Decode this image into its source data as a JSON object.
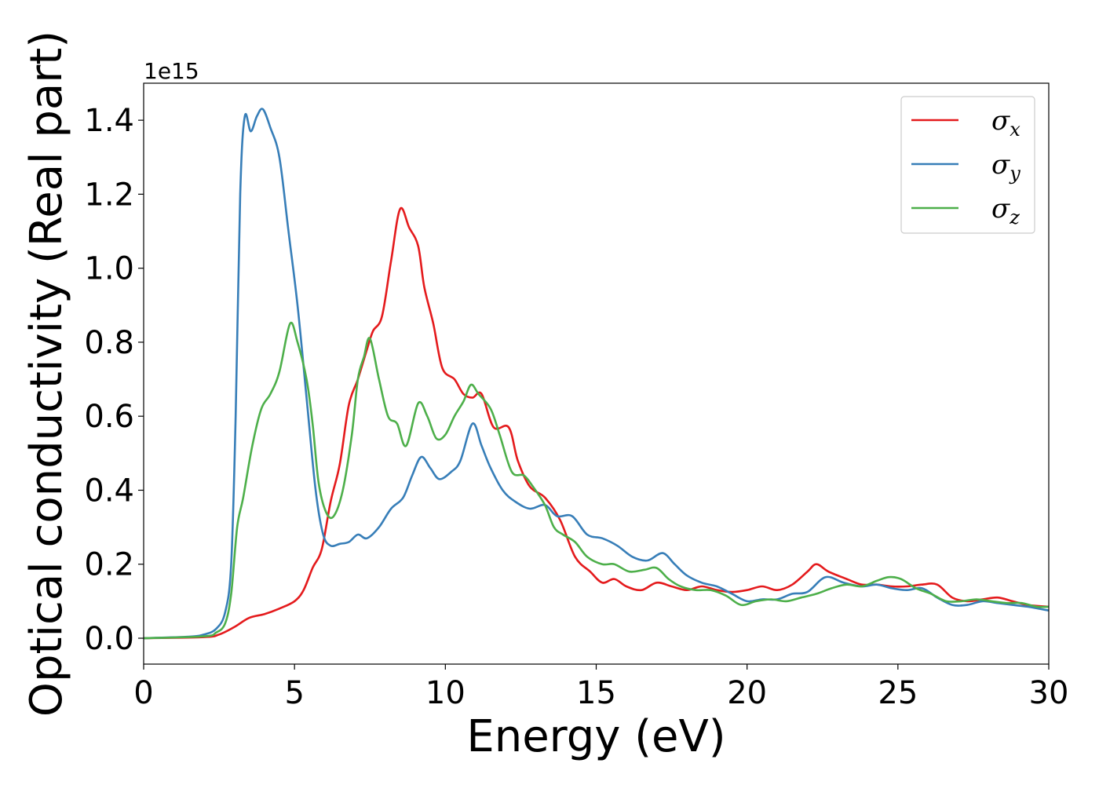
{
  "chart_data": {
    "type": "line",
    "title": "",
    "xlabel": "Energy (eV)",
    "ylabel": "Optical conductivity (Real part)",
    "y_offset_label": "1e15",
    "xlim": [
      0,
      30
    ],
    "ylim": [
      -0.07,
      1.5
    ],
    "x_ticks": [
      0,
      5,
      10,
      15,
      20,
      25,
      30
    ],
    "x_tick_labels": [
      "0",
      "5",
      "10",
      "15",
      "20",
      "25",
      "30"
    ],
    "y_ticks": [
      0.0,
      0.2,
      0.4,
      0.6,
      0.8,
      1.0,
      1.2,
      1.4
    ],
    "y_tick_labels": [
      "0.0",
      "0.2",
      "0.4",
      "0.6",
      "0.8",
      "1.0",
      "1.2",
      "1.4"
    ],
    "grid": false,
    "legend_position": "top-right",
    "series": [
      {
        "name": "σx",
        "symbol": "σ",
        "subscript": "x",
        "color": "#e41a1c",
        "points": [
          [
            0,
            0
          ],
          [
            2,
            0.003
          ],
          [
            2.5,
            0.01
          ],
          [
            3,
            0.03
          ],
          [
            3.5,
            0.055
          ],
          [
            4,
            0.065
          ],
          [
            4.5,
            0.08
          ],
          [
            5,
            0.1
          ],
          [
            5.3,
            0.13
          ],
          [
            5.6,
            0.19
          ],
          [
            5.9,
            0.24
          ],
          [
            6.2,
            0.37
          ],
          [
            6.5,
            0.47
          ],
          [
            6.8,
            0.63
          ],
          [
            7.1,
            0.7
          ],
          [
            7.4,
            0.78
          ],
          [
            7.6,
            0.83
          ],
          [
            7.9,
            0.87
          ],
          [
            8.2,
            1.02
          ],
          [
            8.5,
            1.16
          ],
          [
            8.8,
            1.11
          ],
          [
            9.1,
            1.06
          ],
          [
            9.3,
            0.95
          ],
          [
            9.6,
            0.85
          ],
          [
            9.9,
            0.73
          ],
          [
            10.3,
            0.7
          ],
          [
            10.6,
            0.66
          ],
          [
            10.9,
            0.65
          ],
          [
            11.2,
            0.66
          ],
          [
            11.6,
            0.57
          ],
          [
            12.1,
            0.57
          ],
          [
            12.4,
            0.48
          ],
          [
            12.8,
            0.41
          ],
          [
            13.3,
            0.38
          ],
          [
            13.8,
            0.32
          ],
          [
            14.3,
            0.22
          ],
          [
            14.8,
            0.18
          ],
          [
            15.2,
            0.15
          ],
          [
            15.6,
            0.16
          ],
          [
            16,
            0.14
          ],
          [
            16.5,
            0.13
          ],
          [
            17,
            0.15
          ],
          [
            17.5,
            0.14
          ],
          [
            18,
            0.13
          ],
          [
            18.5,
            0.14
          ],
          [
            19,
            0.13
          ],
          [
            19.5,
            0.125
          ],
          [
            20,
            0.13
          ],
          [
            20.5,
            0.14
          ],
          [
            21,
            0.13
          ],
          [
            21.5,
            0.145
          ],
          [
            22,
            0.18
          ],
          [
            22.3,
            0.2
          ],
          [
            22.7,
            0.18
          ],
          [
            23.3,
            0.16
          ],
          [
            23.8,
            0.145
          ],
          [
            24.3,
            0.145
          ],
          [
            24.8,
            0.14
          ],
          [
            25.3,
            0.14
          ],
          [
            25.8,
            0.145
          ],
          [
            26.3,
            0.145
          ],
          [
            26.8,
            0.11
          ],
          [
            27.3,
            0.1
          ],
          [
            27.8,
            0.105
          ],
          [
            28.3,
            0.11
          ],
          [
            28.8,
            0.1
          ],
          [
            29.3,
            0.09
          ],
          [
            30,
            0.085
          ]
        ]
      },
      {
        "name": "σy",
        "symbol": "σ",
        "subscript": "y",
        "color": "#377eb8",
        "points": [
          [
            0,
            0
          ],
          [
            1.5,
            0.004
          ],
          [
            2,
            0.01
          ],
          [
            2.4,
            0.025
          ],
          [
            2.7,
            0.07
          ],
          [
            2.9,
            0.2
          ],
          [
            3.05,
            0.6
          ],
          [
            3.2,
            1.2
          ],
          [
            3.35,
            1.41
          ],
          [
            3.55,
            1.37
          ],
          [
            3.75,
            1.41
          ],
          [
            3.95,
            1.43
          ],
          [
            4.2,
            1.38
          ],
          [
            4.5,
            1.3
          ],
          [
            4.8,
            1.1
          ],
          [
            5.1,
            0.9
          ],
          [
            5.4,
            0.65
          ],
          [
            5.7,
            0.4
          ],
          [
            5.95,
            0.28
          ],
          [
            6.2,
            0.25
          ],
          [
            6.5,
            0.255
          ],
          [
            6.8,
            0.26
          ],
          [
            7.1,
            0.28
          ],
          [
            7.4,
            0.27
          ],
          [
            7.8,
            0.3
          ],
          [
            8.2,
            0.35
          ],
          [
            8.6,
            0.38
          ],
          [
            8.9,
            0.44
          ],
          [
            9.2,
            0.49
          ],
          [
            9.5,
            0.46
          ],
          [
            9.8,
            0.43
          ],
          [
            10.2,
            0.45
          ],
          [
            10.5,
            0.48
          ],
          [
            10.9,
            0.58
          ],
          [
            11.2,
            0.52
          ],
          [
            11.5,
            0.46
          ],
          [
            11.9,
            0.4
          ],
          [
            12.3,
            0.37
          ],
          [
            12.8,
            0.35
          ],
          [
            13.3,
            0.36
          ],
          [
            13.7,
            0.33
          ],
          [
            14.2,
            0.33
          ],
          [
            14.7,
            0.28
          ],
          [
            15.2,
            0.27
          ],
          [
            15.7,
            0.25
          ],
          [
            16.2,
            0.22
          ],
          [
            16.7,
            0.21
          ],
          [
            17.2,
            0.23
          ],
          [
            17.6,
            0.2
          ],
          [
            18,
            0.17
          ],
          [
            18.5,
            0.15
          ],
          [
            19,
            0.14
          ],
          [
            19.5,
            0.12
          ],
          [
            20,
            0.1
          ],
          [
            20.5,
            0.105
          ],
          [
            21,
            0.105
          ],
          [
            21.5,
            0.12
          ],
          [
            22,
            0.125
          ],
          [
            22.6,
            0.165
          ],
          [
            23.2,
            0.15
          ],
          [
            23.8,
            0.14
          ],
          [
            24.3,
            0.145
          ],
          [
            24.8,
            0.135
          ],
          [
            25.3,
            0.13
          ],
          [
            25.8,
            0.135
          ],
          [
            26.3,
            0.11
          ],
          [
            26.8,
            0.09
          ],
          [
            27.3,
            0.09
          ],
          [
            27.8,
            0.1
          ],
          [
            28.3,
            0.095
          ],
          [
            28.8,
            0.09
          ],
          [
            29.3,
            0.085
          ],
          [
            30,
            0.075
          ]
        ]
      },
      {
        "name": "σz",
        "symbol": "σ",
        "subscript": "z",
        "color": "#4daf4a",
        "points": [
          [
            0,
            0
          ],
          [
            2,
            0.005
          ],
          [
            2.4,
            0.015
          ],
          [
            2.7,
            0.04
          ],
          [
            2.9,
            0.12
          ],
          [
            3.1,
            0.3
          ],
          [
            3.3,
            0.38
          ],
          [
            3.6,
            0.52
          ],
          [
            3.9,
            0.62
          ],
          [
            4.2,
            0.66
          ],
          [
            4.5,
            0.72
          ],
          [
            4.85,
            0.85
          ],
          [
            5.1,
            0.8
          ],
          [
            5.4,
            0.7
          ],
          [
            5.6,
            0.58
          ],
          [
            5.8,
            0.42
          ],
          [
            6.05,
            0.34
          ],
          [
            6.3,
            0.33
          ],
          [
            6.6,
            0.4
          ],
          [
            6.9,
            0.55
          ],
          [
            7.1,
            0.7
          ],
          [
            7.3,
            0.76
          ],
          [
            7.5,
            0.81
          ],
          [
            7.8,
            0.7
          ],
          [
            8.1,
            0.6
          ],
          [
            8.4,
            0.58
          ],
          [
            8.7,
            0.52
          ],
          [
            9.1,
            0.635
          ],
          [
            9.4,
            0.6
          ],
          [
            9.7,
            0.54
          ],
          [
            10,
            0.55
          ],
          [
            10.3,
            0.6
          ],
          [
            10.6,
            0.64
          ],
          [
            10.85,
            0.685
          ],
          [
            11.1,
            0.66
          ],
          [
            11.5,
            0.62
          ],
          [
            11.8,
            0.55
          ],
          [
            12.2,
            0.45
          ],
          [
            12.6,
            0.44
          ],
          [
            12.9,
            0.41
          ],
          [
            13.3,
            0.36
          ],
          [
            13.6,
            0.3
          ],
          [
            13.9,
            0.28
          ],
          [
            14.3,
            0.26
          ],
          [
            14.7,
            0.22
          ],
          [
            15.2,
            0.2
          ],
          [
            15.6,
            0.2
          ],
          [
            16.1,
            0.18
          ],
          [
            16.6,
            0.185
          ],
          [
            17,
            0.19
          ],
          [
            17.4,
            0.16
          ],
          [
            17.8,
            0.14
          ],
          [
            18.3,
            0.13
          ],
          [
            18.8,
            0.13
          ],
          [
            19.3,
            0.115
          ],
          [
            19.8,
            0.09
          ],
          [
            20.3,
            0.1
          ],
          [
            20.8,
            0.105
          ],
          [
            21.3,
            0.1
          ],
          [
            21.8,
            0.11
          ],
          [
            22.3,
            0.12
          ],
          [
            22.8,
            0.135
          ],
          [
            23.3,
            0.145
          ],
          [
            23.8,
            0.14
          ],
          [
            24.3,
            0.155
          ],
          [
            24.7,
            0.165
          ],
          [
            25.1,
            0.16
          ],
          [
            25.6,
            0.135
          ],
          [
            26.1,
            0.12
          ],
          [
            26.6,
            0.1
          ],
          [
            27.1,
            0.1
          ],
          [
            27.6,
            0.105
          ],
          [
            28.1,
            0.1
          ],
          [
            28.6,
            0.095
          ],
          [
            29.1,
            0.095
          ],
          [
            29.6,
            0.085
          ],
          [
            30,
            0.085
          ]
        ]
      }
    ]
  }
}
